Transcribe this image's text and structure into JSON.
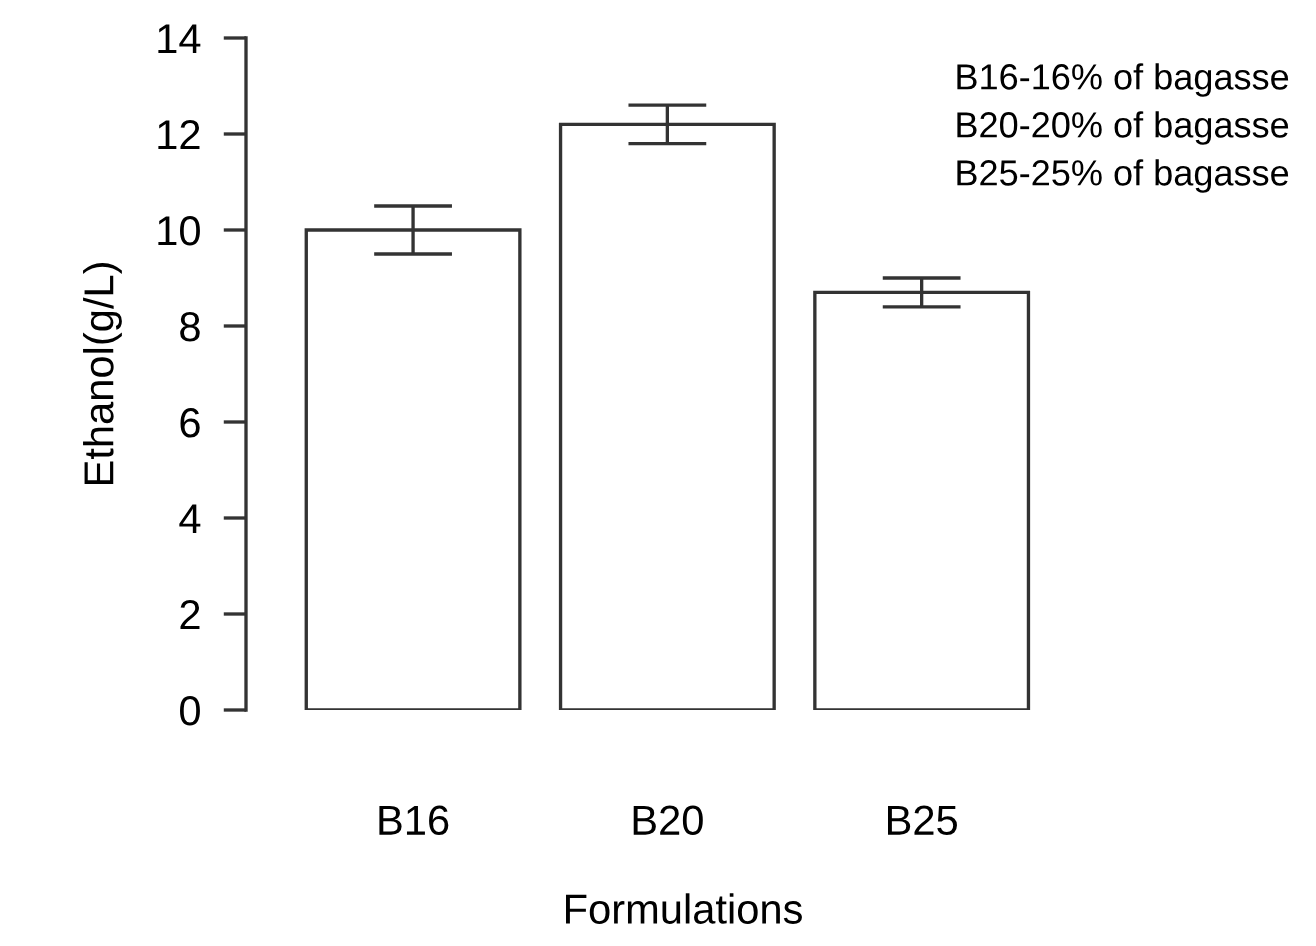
{
  "chart_data": {
    "type": "bar",
    "xlabel": "Formulations",
    "ylabel": "Ethanol(g/L)",
    "categories": [
      "B16",
      "B20",
      "B25"
    ],
    "values": [
      10.0,
      12.2,
      8.7
    ],
    "errors": [
      0.5,
      0.4,
      0.3
    ],
    "color": "#ffffff",
    "ylim": [
      0,
      14
    ],
    "yticks": [
      0,
      2,
      4,
      6,
      8,
      10,
      12,
      14
    ],
    "grid": false,
    "annotations": [
      "B16-16% of bagasse",
      "B20-20% of bagasse",
      "B25-25% of bagasse"
    ]
  }
}
